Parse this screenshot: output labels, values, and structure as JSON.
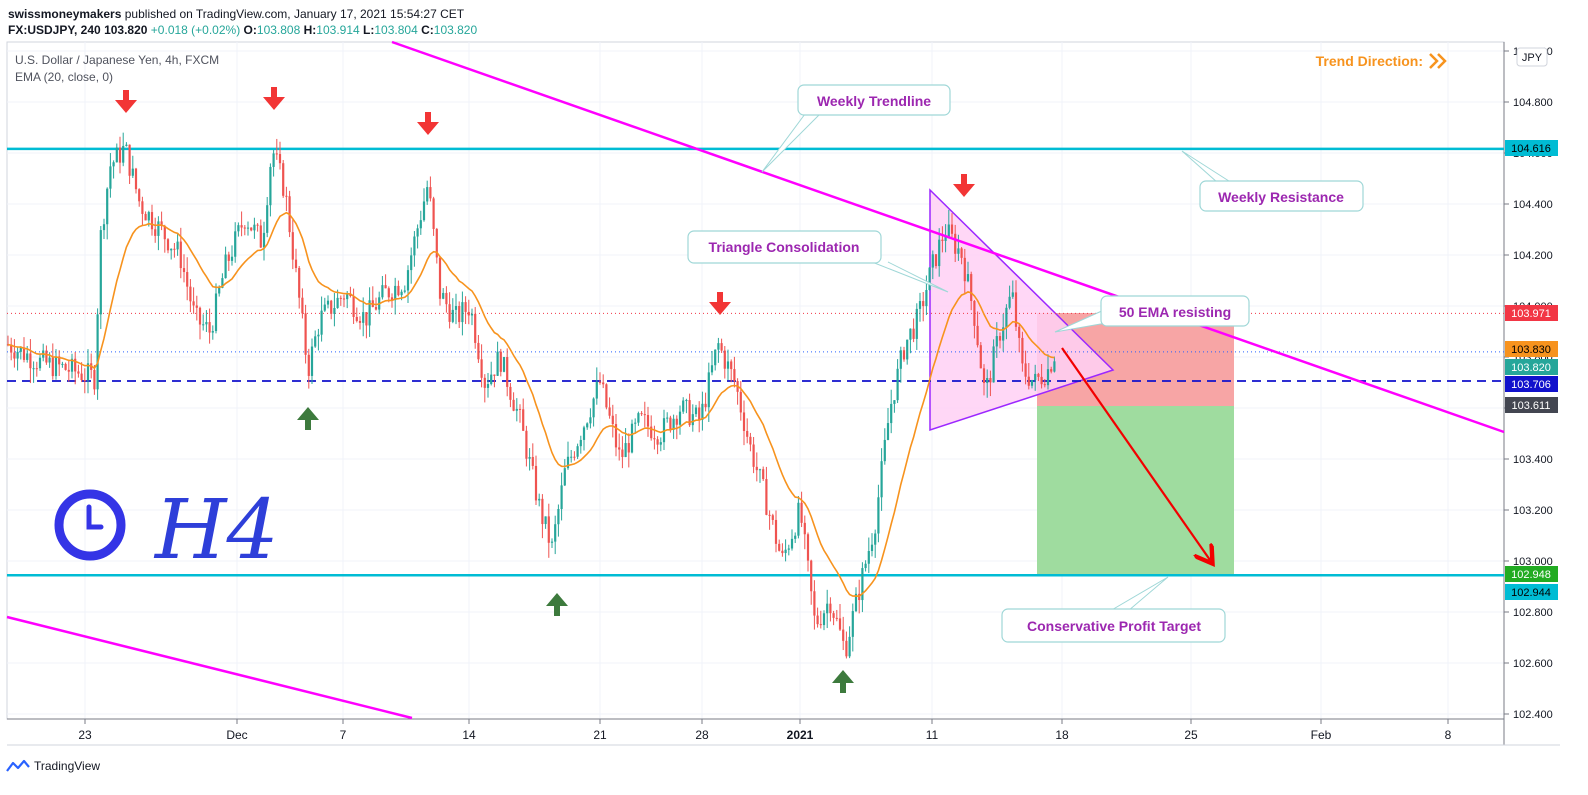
{
  "header": {
    "publisher": "swissmoneymakers",
    "published_text": "published on TradingView.com, January 17, 2021 15:54:27 CET",
    "symbol_line": "FX:USDJPY, 240",
    "last": "103.820",
    "change": "+0.018 (+0.02%)",
    "o_label": "O:",
    "o_value": "103.808",
    "h_label": "H:",
    "h_value": "103.914",
    "l_label": "L:",
    "l_value": "103.804",
    "c_label": "C:",
    "c_value": "103.820"
  },
  "legend": {
    "title": "U.S. Dollar / Japanese Yen, 4h, FXCM",
    "ema": "EMA (20, close, 0)"
  },
  "currency_badge": "JPY",
  "trend_direction": "Trend Direction:",
  "handwritten": "H4",
  "footer": {
    "brand": "TradingView"
  },
  "annotations": {
    "weekly_trendline": "Weekly Trendline",
    "weekly_resistance": "Weekly Resistance",
    "triangle": "Triangle Consolidation",
    "ema_resist": "50 EMA resisting",
    "profit_target": "Conservative Profit Target"
  },
  "colors": {
    "bull": "#26a69a",
    "bear": "#ef5350",
    "ema": "#f7931e",
    "trendline": "#ff00ff",
    "horizontal": "#00bcd4",
    "annotation_text": "#9c27b0",
    "trend_direction": "#f7931e",
    "arrow_down": "#f23535",
    "arrow_up": "#3d7a3d"
  },
  "chart_data": {
    "type": "candlestick",
    "ylim": [
      102.35,
      105.05
    ],
    "y_ticks": [
      {
        "value": 102.4,
        "label": "102.400"
      },
      {
        "value": 102.6,
        "label": "102.600"
      },
      {
        "value": 102.8,
        "label": "102.800"
      },
      {
        "value": 103.0,
        "label": "103.000"
      },
      {
        "value": 103.2,
        "label": "103.200"
      },
      {
        "value": 103.4,
        "label": "103.400"
      },
      {
        "value": 103.6,
        "label": "103.600"
      },
      {
        "value": 103.8,
        "label": "103.800"
      },
      {
        "value": 104.0,
        "label": "104.000"
      },
      {
        "value": 104.2,
        "label": "104.200"
      },
      {
        "value": 104.4,
        "label": "104.400"
      },
      {
        "value": 104.6,
        "label": "104.600"
      },
      {
        "value": 104.8,
        "label": "104.800"
      },
      {
        "value": 105.0,
        "label": "105.000"
      }
    ],
    "x_ticks": [
      {
        "label": "23",
        "bold": false
      },
      {
        "label": "Dec",
        "bold": false
      },
      {
        "label": "7",
        "bold": false
      },
      {
        "label": "14",
        "bold": false
      },
      {
        "label": "21",
        "bold": false
      },
      {
        "label": "28",
        "bold": false
      },
      {
        "label": "2021",
        "bold": true
      },
      {
        "label": "11",
        "bold": false
      },
      {
        "label": "18",
        "bold": false
      },
      {
        "label": "25",
        "bold": false
      },
      {
        "label": "Feb",
        "bold": false
      },
      {
        "label": "8",
        "bold": false
      }
    ],
    "price_badges": [
      {
        "value": 104.616,
        "label": "104.616",
        "bg": "#00bcd4",
        "fg": "#000000"
      },
      {
        "value": 103.971,
        "label": "103.971",
        "bg": "#f23645",
        "fg": "#ffffff"
      },
      {
        "value": 103.83,
        "label": "103.830",
        "bg": "#f7931e",
        "fg": "#000000"
      },
      {
        "value": 103.82,
        "label": "103.820",
        "bg": "#26a69a",
        "fg": "#ffffff"
      },
      {
        "value": 103.706,
        "label": "103.706",
        "bg": "#1111cc",
        "fg": "#ffffff"
      },
      {
        "value": 103.611,
        "label": "103.611",
        "bg": "#434651",
        "fg": "#ffffff"
      },
      {
        "value": 102.948,
        "label": "102.948",
        "bg": "#22ab22",
        "fg": "#ffffff"
      },
      {
        "value": 102.944,
        "label": "102.944",
        "bg": "#00bcd4",
        "fg": "#000000"
      }
    ],
    "levels": {
      "weekly_resistance": 104.616,
      "profit_target": 102.944,
      "dashed_blue": 103.706,
      "red_dotted": 103.971,
      "blue_dotted": 103.82
    }
  }
}
